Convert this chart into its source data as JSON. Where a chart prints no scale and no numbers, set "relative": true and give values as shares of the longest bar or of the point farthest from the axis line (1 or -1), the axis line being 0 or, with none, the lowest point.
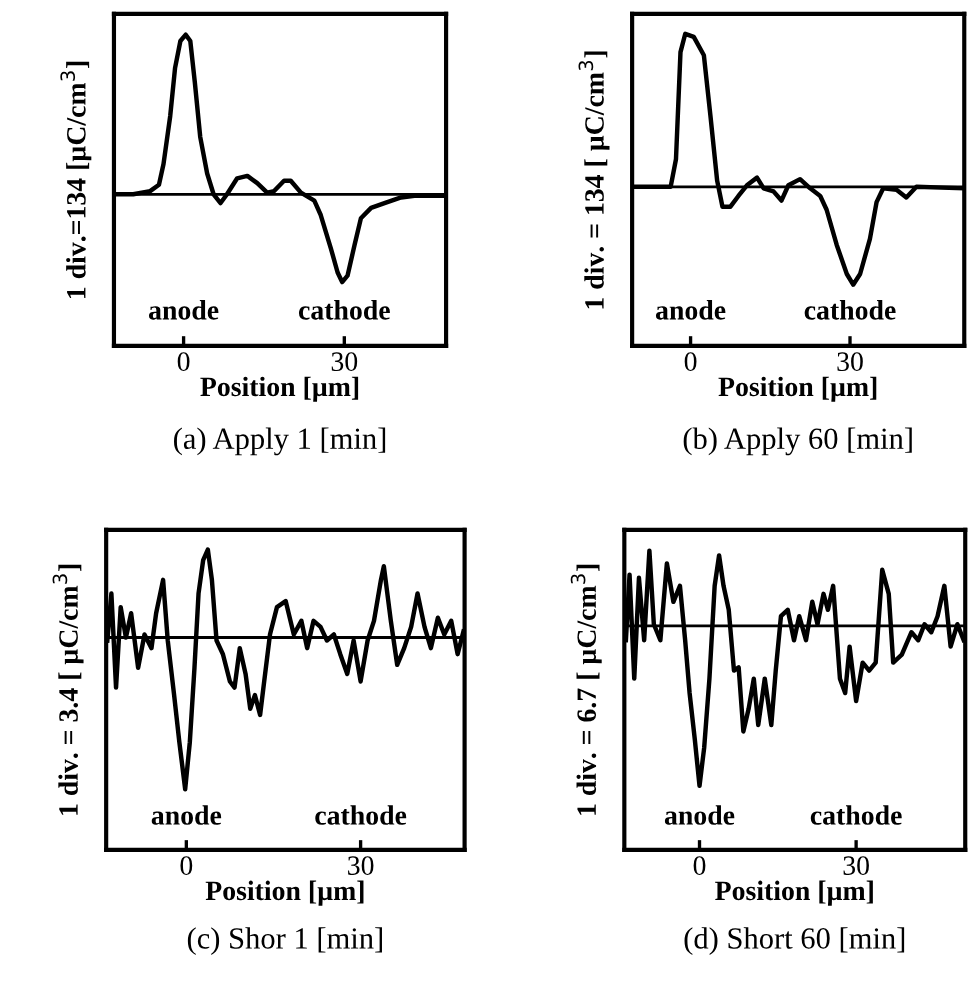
{
  "chart_data": [
    {
      "type": "line",
      "title": "(a) Apply 1 [min]",
      "xlabel": "Position [µm]",
      "ylabel": "1 div.=134 [µC/cm$^{3}$]",
      "relative": true,
      "xlim": [
        -13,
        49
      ],
      "xticks": [
        0,
        30
      ],
      "grid": false,
      "legend": false,
      "annotations": [
        "anode",
        "cathode"
      ],
      "series": [
        {
          "color": "#000000",
          "x": [
            -13,
            -9.4,
            -6.25,
            -4.6,
            -3.75,
            -2.5,
            -1.6,
            -0.6,
            0.4,
            1.25,
            2.1,
            3.1,
            4.4,
            5.6,
            6.9,
            8.1,
            10,
            11.9,
            13.75,
            15.6,
            16.9,
            18.75,
            20,
            21.9,
            24.4,
            25.6,
            27.5,
            28.75,
            29.6,
            30.6,
            31.9,
            33.1,
            35,
            37.5,
            40.6,
            43.1,
            49
          ],
          "values": [
            0,
            0,
            0.02,
            0.06,
            0.19,
            0.49,
            0.79,
            0.96,
            1.0,
            0.96,
            0.7,
            0.36,
            0.13,
            0,
            -0.055,
            0,
            0.1,
            0.115,
            0.07,
            0.01,
            0.02,
            0.085,
            0.085,
            0.01,
            -0.04,
            -0.13,
            -0.34,
            -0.49,
            -0.55,
            -0.51,
            -0.32,
            -0.15,
            -0.085,
            -0.055,
            -0.02,
            -0.01,
            -0.01
          ]
        }
      ]
    },
    {
      "type": "line",
      "title": "(b) Apply 60 [min]",
      "xlabel": "Position [µm]",
      "ylabel": "1 div. = 134 [ µC/cm$^{3}$]",
      "relative": true,
      "xlim": [
        -11,
        51.5
      ],
      "xticks": [
        0,
        30
      ],
      "grid": false,
      "legend": false,
      "annotations": [
        "anode",
        "cathode"
      ],
      "series": [
        {
          "color": "#000000",
          "x": [
            -11,
            -3.75,
            -2.75,
            -1.9,
            -1,
            0.6,
            2.5,
            3.75,
            5,
            6,
            7.5,
            9,
            10.6,
            12.5,
            13.75,
            15.6,
            17.1,
            18.4,
            20.6,
            22.5,
            24.4,
            25.6,
            27.5,
            29.4,
            30.6,
            31.9,
            33.75,
            35,
            36.25,
            38.75,
            40.6,
            42.5,
            51.5
          ],
          "values": [
            0,
            0,
            0.18,
            0.88,
            1.0,
            0.98,
            0.86,
            0.46,
            0.04,
            -0.13,
            -0.13,
            -0.06,
            0.01,
            0.06,
            -0.01,
            -0.03,
            -0.09,
            0.01,
            0.05,
            -0.01,
            -0.06,
            -0.15,
            -0.38,
            -0.57,
            -0.64,
            -0.57,
            -0.34,
            -0.1,
            -0.01,
            -0.02,
            -0.07,
            0,
            -0.01
          ]
        }
      ]
    },
    {
      "type": "line",
      "title": "(c) Shor 1 [min]",
      "xlabel": "Position [µm]",
      "ylabel": "1 div. = 3.4 [ µC/cm$^{3}$]",
      "relative": true,
      "xlim": [
        -13.8,
        47.9
      ],
      "xticks": [
        0,
        30
      ],
      "grid": false,
      "legend": false,
      "annotations": [
        "anode",
        "cathode"
      ],
      "series": [
        {
          "color": "#000000",
          "x": [
            -13.6,
            -12.9,
            -12.1,
            -11.3,
            -10.4,
            -9.5,
            -8.3,
            -7.2,
            -6.0,
            -5.2,
            -4.0,
            -3.2,
            -2.1,
            -1.2,
            -0.2,
            0.6,
            1.4,
            2.1,
            2.9,
            3.7,
            4.4,
            5.2,
            6.3,
            7.5,
            8.3,
            9.2,
            10.2,
            11.0,
            11.8,
            12.7,
            13.4,
            14.4,
            15.6,
            17.1,
            18.5,
            19.8,
            20.8,
            21.9,
            23.1,
            24.2,
            25.4,
            26.5,
            27.7,
            28.8,
            30.0,
            31.2,
            32.3,
            33.5,
            34.0,
            35.2,
            36.3,
            37.5,
            38.7,
            39.8,
            41.0,
            42.1,
            43.3,
            44.4,
            45.6,
            46.7,
            47.7
          ],
          "values": [
            -0.02,
            0.29,
            -0.33,
            0.2,
            0,
            0.16,
            -0.2,
            0.02,
            -0.07,
            0.16,
            0.38,
            -0.02,
            -0.38,
            -0.69,
            -1.0,
            -0.69,
            -0.2,
            0.29,
            0.51,
            0.58,
            0.38,
            -0.02,
            -0.11,
            -0.29,
            -0.33,
            -0.07,
            -0.24,
            -0.47,
            -0.38,
            -0.51,
            -0.29,
            0.02,
            0.2,
            0.24,
            0.02,
            0.11,
            -0.07,
            0.11,
            0.07,
            -0.02,
            0.02,
            -0.11,
            -0.24,
            -0.02,
            -0.29,
            -0.02,
            0.11,
            0.38,
            0.47,
            0.11,
            -0.18,
            -0.07,
            0.07,
            0.29,
            0.07,
            -0.07,
            0.13,
            0.02,
            0.11,
            -0.11,
            0.04
          ]
        }
      ]
    },
    {
      "type": "line",
      "title": "(d) Short 60 [min]",
      "xlabel": "Position [µm]",
      "ylabel": "1 div. = 6.7 [ µC/cm$^{3}$]",
      "relative": true,
      "xlim": [
        -14.4,
        50.9
      ],
      "xticks": [
        0,
        30
      ],
      "grid": false,
      "legend": false,
      "annotations": [
        "anode",
        "cathode"
      ],
      "series": [
        {
          "color": "#000000",
          "x": [
            -14.1,
            -13.4,
            -12.5,
            -11.6,
            -10.6,
            -9.6,
            -8.75,
            -7.5,
            -6.25,
            -5.0,
            -3.75,
            -2.75,
            -1.9,
            -0.9,
            0,
            0.9,
            1.9,
            2.9,
            3.75,
            4.6,
            5.6,
            6.6,
            7.5,
            8.4,
            9.4,
            10.4,
            11.25,
            12.5,
            13.75,
            14.6,
            15.6,
            16.9,
            18.1,
            19.1,
            20.4,
            21.6,
            22.6,
            23.75,
            24.6,
            25.6,
            26.9,
            27.9,
            28.75,
            30.0,
            31.25,
            32.5,
            33.75,
            35.0,
            36.25,
            37.1,
            38.75,
            40.6,
            41.9,
            43.1,
            44.4,
            45.6,
            46.9,
            48.1,
            49.4,
            50.6
          ],
          "values": [
            -0.09,
            0.32,
            -0.33,
            0.3,
            -0.09,
            0.47,
            0.01,
            -0.09,
            0.39,
            0.15,
            0.25,
            -0.09,
            -0.42,
            -0.71,
            -1.0,
            -0.76,
            -0.33,
            0.25,
            0.44,
            0.25,
            0.1,
            -0.28,
            -0.26,
            -0.66,
            -0.52,
            -0.33,
            -0.62,
            -0.33,
            -0.62,
            -0.28,
            0.06,
            0.1,
            -0.09,
            0.06,
            -0.09,
            0.15,
            0.01,
            0.2,
            0.1,
            0.25,
            -0.33,
            -0.42,
            -0.13,
            -0.47,
            -0.23,
            -0.28,
            -0.23,
            0.35,
            0.2,
            -0.23,
            -0.18,
            -0.04,
            -0.09,
            0.01,
            -0.04,
            0.06,
            0.25,
            -0.13,
            0.01,
            -0.09
          ]
        }
      ]
    }
  ]
}
